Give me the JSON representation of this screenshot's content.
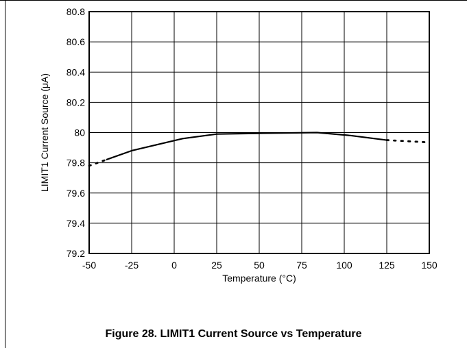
{
  "caption": "Figure 28. LIMIT1 Current Source vs Temperature",
  "chart_data": {
    "type": "line",
    "title": "",
    "xlabel": "Temperature (°C)",
    "ylabel": "LIMIT1 Current Source (μA)",
    "xlim": [
      -50,
      150
    ],
    "ylim": [
      79.2,
      80.8
    ],
    "x_ticks": [
      -50,
      -25,
      0,
      25,
      50,
      75,
      100,
      125,
      150
    ],
    "x_tick_labels": [
      "-50",
      "-25",
      "0",
      "25",
      "50",
      "75",
      "100",
      "125",
      "150"
    ],
    "y_ticks": [
      79.2,
      79.4,
      79.6,
      79.8,
      80,
      80.2,
      80.4,
      80.6,
      80.8
    ],
    "y_tick_labels": [
      "79.2",
      "79.4",
      "79.6",
      "79.8",
      "80",
      "80.2",
      "80.4",
      "80.6",
      "80.8"
    ],
    "grid": true,
    "series": [
      {
        "style": "solid",
        "x": [
          -40,
          -25,
          5,
          25,
          50,
          84,
          104,
          125
        ],
        "y": [
          79.82,
          79.88,
          79.96,
          79.99,
          79.995,
          80.0,
          79.98,
          79.95
        ]
      },
      {
        "style": "dotted",
        "x": [
          -50,
          -40
        ],
        "y": [
          79.78,
          79.82
        ]
      },
      {
        "style": "dotted",
        "x": [
          125,
          150
        ],
        "y": [
          79.95,
          79.935
        ]
      }
    ],
    "colors": {
      "line": "#000000",
      "grid": "#000000",
      "background": "#ffffff"
    }
  }
}
